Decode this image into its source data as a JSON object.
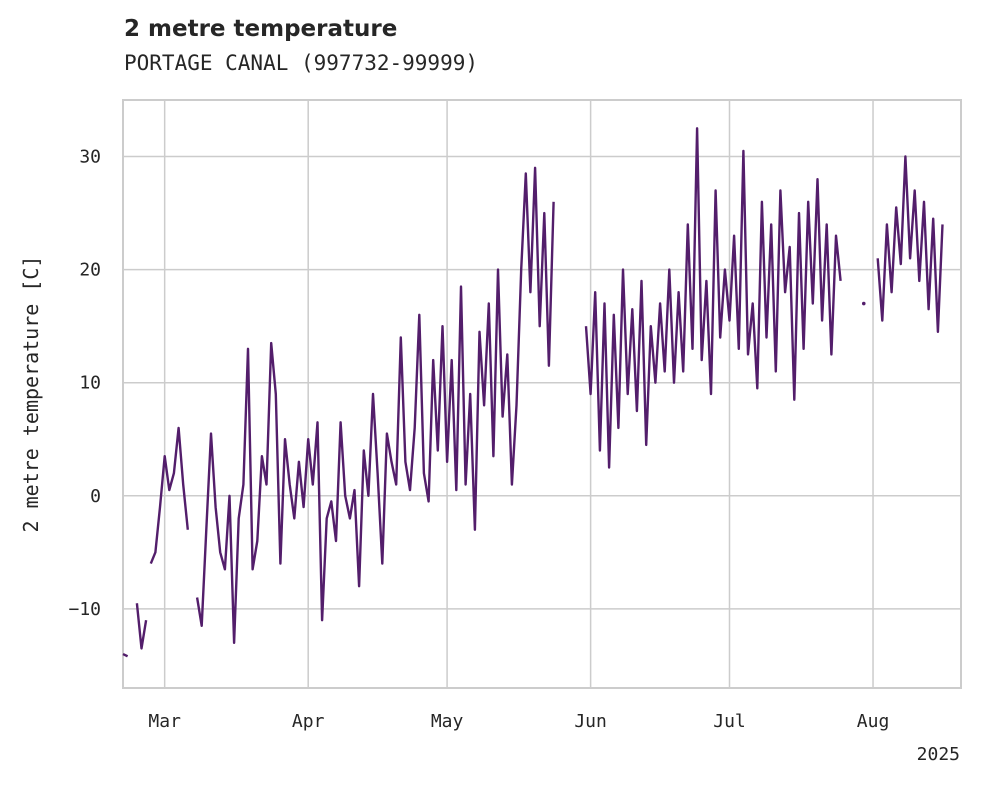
{
  "chart_data": {
    "type": "line",
    "title": "2 metre temperature",
    "subtitle": "PORTAGE CANAL (997732-99999)",
    "ylabel": "2 metre temperature [C]",
    "xlabel": "",
    "year_label": "2025",
    "xlim": [
      "2025-02-20",
      "2025-08-20"
    ],
    "ylim": [
      -17,
      35
    ],
    "x_ticks": [
      {
        "date": "2025-03-01",
        "label": "Mar"
      },
      {
        "date": "2025-04-01",
        "label": "Apr"
      },
      {
        "date": "2025-05-01",
        "label": "May"
      },
      {
        "date": "2025-06-01",
        "label": "Jun"
      },
      {
        "date": "2025-07-01",
        "label": "Jul"
      },
      {
        "date": "2025-08-01",
        "label": "Aug"
      }
    ],
    "y_ticks": [
      -10,
      0,
      10,
      20,
      30
    ],
    "grid": true,
    "series": [
      {
        "color": "#531e6b",
        "segments": [
          [
            [
              "2025-02-20",
              -14.0
            ],
            [
              "2025-02-21",
              -14.2
            ]
          ],
          [
            [
              "2025-02-23",
              -9.5
            ],
            [
              "2025-02-24",
              -13.5
            ],
            [
              "2025-02-25",
              -11.0
            ]
          ],
          [
            [
              "2025-02-26",
              -6.0
            ],
            [
              "2025-02-27",
              -5.0
            ],
            [
              "2025-02-28",
              -1.0
            ],
            [
              "2025-03-01",
              3.5
            ],
            [
              "2025-03-02",
              0.5
            ],
            [
              "2025-03-03",
              2.0
            ],
            [
              "2025-03-04",
              6.0
            ],
            [
              "2025-03-05",
              1.0
            ],
            [
              "2025-03-06",
              -3.0
            ]
          ],
          [
            [
              "2025-03-08",
              -9.0
            ],
            [
              "2025-03-09",
              -11.5
            ],
            [
              "2025-03-10",
              -3.0
            ],
            [
              "2025-03-11",
              5.5
            ],
            [
              "2025-03-12",
              -1.0
            ],
            [
              "2025-03-13",
              -5.0
            ],
            [
              "2025-03-14",
              -6.5
            ],
            [
              "2025-03-15",
              0.0
            ],
            [
              "2025-03-16",
              -13.0
            ],
            [
              "2025-03-17",
              -2.0
            ],
            [
              "2025-03-18",
              1.0
            ],
            [
              "2025-03-19",
              13.0
            ],
            [
              "2025-03-20",
              -6.5
            ],
            [
              "2025-03-21",
              -4.0
            ],
            [
              "2025-03-22",
              3.5
            ],
            [
              "2025-03-23",
              1.0
            ],
            [
              "2025-03-24",
              13.5
            ],
            [
              "2025-03-25",
              9.0
            ],
            [
              "2025-03-26",
              -6.0
            ],
            [
              "2025-03-27",
              5.0
            ],
            [
              "2025-03-28",
              1.0
            ],
            [
              "2025-03-29",
              -2.0
            ],
            [
              "2025-03-30",
              3.0
            ],
            [
              "2025-03-31",
              -1.0
            ],
            [
              "2025-04-01",
              5.0
            ],
            [
              "2025-04-02",
              1.0
            ],
            [
              "2025-04-03",
              6.5
            ],
            [
              "2025-04-04",
              -11.0
            ],
            [
              "2025-04-05",
              -2.0
            ],
            [
              "2025-04-06",
              -0.5
            ],
            [
              "2025-04-07",
              -4.0
            ],
            [
              "2025-04-08",
              6.5
            ],
            [
              "2025-04-09",
              0.0
            ],
            [
              "2025-04-10",
              -2.0
            ],
            [
              "2025-04-11",
              0.5
            ],
            [
              "2025-04-12",
              -8.0
            ],
            [
              "2025-04-13",
              4.0
            ],
            [
              "2025-04-14",
              0.0
            ],
            [
              "2025-04-15",
              9.0
            ],
            [
              "2025-04-16",
              2.0
            ],
            [
              "2025-04-17",
              -6.0
            ],
            [
              "2025-04-18",
              5.5
            ],
            [
              "2025-04-19",
              3.0
            ],
            [
              "2025-04-20",
              1.0
            ],
            [
              "2025-04-21",
              14.0
            ],
            [
              "2025-04-22",
              3.0
            ],
            [
              "2025-04-23",
              0.5
            ],
            [
              "2025-04-24",
              6.0
            ],
            [
              "2025-04-25",
              16.0
            ],
            [
              "2025-04-26",
              2.0
            ],
            [
              "2025-04-27",
              -0.5
            ],
            [
              "2025-04-28",
              12.0
            ],
            [
              "2025-04-29",
              4.0
            ],
            [
              "2025-04-30",
              15.0
            ],
            [
              "2025-05-01",
              3.0
            ],
            [
              "2025-05-02",
              12.0
            ],
            [
              "2025-05-03",
              0.5
            ],
            [
              "2025-05-04",
              18.5
            ],
            [
              "2025-05-05",
              1.0
            ],
            [
              "2025-05-06",
              9.0
            ],
            [
              "2025-05-07",
              -3.0
            ],
            [
              "2025-05-08",
              14.5
            ],
            [
              "2025-05-09",
              8.0
            ],
            [
              "2025-05-10",
              17.0
            ],
            [
              "2025-05-11",
              3.5
            ],
            [
              "2025-05-12",
              20.0
            ],
            [
              "2025-05-13",
              7.0
            ],
            [
              "2025-05-14",
              12.5
            ],
            [
              "2025-05-15",
              1.0
            ],
            [
              "2025-05-16",
              8.0
            ],
            [
              "2025-05-17",
              20.0
            ],
            [
              "2025-05-18",
              28.5
            ],
            [
              "2025-05-19",
              18.0
            ],
            [
              "2025-05-20",
              29.0
            ],
            [
              "2025-05-21",
              15.0
            ],
            [
              "2025-05-22",
              25.0
            ],
            [
              "2025-05-23",
              11.5
            ],
            [
              "2025-05-24",
              26.0
            ]
          ],
          [
            [
              "2025-05-31",
              15.0
            ],
            [
              "2025-06-01",
              9.0
            ],
            [
              "2025-06-02",
              18.0
            ],
            [
              "2025-06-03",
              4.0
            ],
            [
              "2025-06-04",
              17.0
            ],
            [
              "2025-06-05",
              2.5
            ],
            [
              "2025-06-06",
              16.0
            ],
            [
              "2025-06-07",
              6.0
            ],
            [
              "2025-06-08",
              20.0
            ],
            [
              "2025-06-09",
              9.0
            ],
            [
              "2025-06-10",
              16.5
            ],
            [
              "2025-06-11",
              7.5
            ],
            [
              "2025-06-12",
              19.0
            ],
            [
              "2025-06-13",
              4.5
            ],
            [
              "2025-06-14",
              15.0
            ],
            [
              "2025-06-15",
              10.0
            ],
            [
              "2025-06-16",
              17.0
            ],
            [
              "2025-06-17",
              11.0
            ],
            [
              "2025-06-18",
              20.0
            ],
            [
              "2025-06-19",
              10.0
            ],
            [
              "2025-06-20",
              18.0
            ],
            [
              "2025-06-21",
              11.0
            ],
            [
              "2025-06-22",
              24.0
            ],
            [
              "2025-06-23",
              13.0
            ],
            [
              "2025-06-24",
              32.5
            ],
            [
              "2025-06-25",
              12.0
            ],
            [
              "2025-06-26",
              19.0
            ],
            [
              "2025-06-27",
              9.0
            ],
            [
              "2025-06-28",
              27.0
            ],
            [
              "2025-06-29",
              14.0
            ],
            [
              "2025-06-30",
              20.0
            ],
            [
              "2025-07-01",
              15.5
            ],
            [
              "2025-07-02",
              23.0
            ],
            [
              "2025-07-03",
              13.0
            ],
            [
              "2025-07-04",
              30.5
            ],
            [
              "2025-07-05",
              12.5
            ],
            [
              "2025-07-06",
              17.0
            ],
            [
              "2025-07-07",
              9.5
            ],
            [
              "2025-07-08",
              26.0
            ],
            [
              "2025-07-09",
              14.0
            ],
            [
              "2025-07-10",
              24.0
            ],
            [
              "2025-07-11",
              11.0
            ],
            [
              "2025-07-12",
              27.0
            ],
            [
              "2025-07-13",
              18.0
            ],
            [
              "2025-07-14",
              22.0
            ],
            [
              "2025-07-15",
              8.5
            ],
            [
              "2025-07-16",
              25.0
            ],
            [
              "2025-07-17",
              13.0
            ],
            [
              "2025-07-18",
              26.0
            ],
            [
              "2025-07-19",
              17.0
            ],
            [
              "2025-07-20",
              28.0
            ],
            [
              "2025-07-21",
              15.5
            ],
            [
              "2025-07-22",
              24.0
            ],
            [
              "2025-07-23",
              12.5
            ],
            [
              "2025-07-24",
              23.0
            ],
            [
              "2025-07-25",
              19.0
            ]
          ],
          [
            [
              "2025-07-30",
              17.0
            ]
          ],
          [
            [
              "2025-08-02",
              21.0
            ],
            [
              "2025-08-03",
              15.5
            ],
            [
              "2025-08-04",
              24.0
            ],
            [
              "2025-08-05",
              18.0
            ],
            [
              "2025-08-06",
              25.5
            ],
            [
              "2025-08-07",
              20.5
            ],
            [
              "2025-08-08",
              30.0
            ],
            [
              "2025-08-09",
              21.0
            ],
            [
              "2025-08-10",
              27.0
            ],
            [
              "2025-08-11",
              19.0
            ],
            [
              "2025-08-12",
              26.0
            ],
            [
              "2025-08-13",
              16.5
            ],
            [
              "2025-08-14",
              24.5
            ],
            [
              "2025-08-15",
              14.5
            ],
            [
              "2025-08-16",
              24.0
            ]
          ]
        ]
      }
    ]
  }
}
